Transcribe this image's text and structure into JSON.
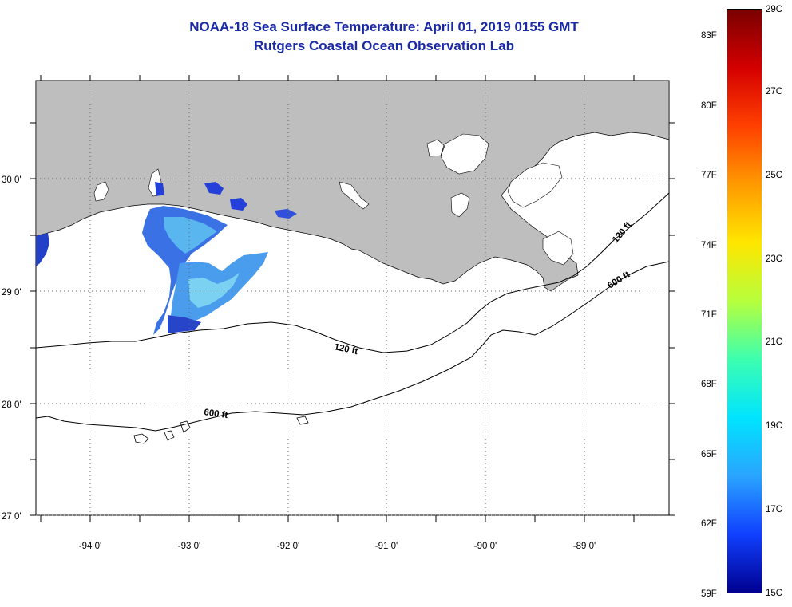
{
  "header": {
    "title": "NOAA-18 Sea Surface Temperature:  April 01, 2019 0155 GMT",
    "subtitle": "Rutgers Coastal Ocean Observation Lab"
  },
  "map": {
    "lat_labels": [
      "30 0'",
      "29 0'",
      "28 0'",
      "27 0'"
    ],
    "lon_labels": [
      "-94 0'",
      "-93 0'",
      "-92 0'",
      "-91 0'",
      "-90 0'",
      "-89 0'"
    ],
    "contour_labels": [
      "120 ft",
      "600 ft",
      "120 ft",
      "600 ft"
    ],
    "colors": {
      "land": "#bebebe",
      "ocean": "#ffffff",
      "sst_cool": "#2540d8",
      "sst_warm": "#3fb0ea"
    }
  },
  "colorbar": {
    "celsius_labels": [
      "29C",
      "27C",
      "25C",
      "23C",
      "21C",
      "19C",
      "17C",
      "15C"
    ],
    "fahrenheit_labels": [
      "83F",
      "80F",
      "77F",
      "74F",
      "71F",
      "68F",
      "65F",
      "62F",
      "59F"
    ],
    "colors": [
      "#7a0000",
      "#d40000",
      "#ff4000",
      "#ff9a00",
      "#ffe600",
      "#b6ff3c",
      "#3cffb0",
      "#00e4ff",
      "#2aa4ff",
      "#1040ff",
      "#000090"
    ]
  }
}
